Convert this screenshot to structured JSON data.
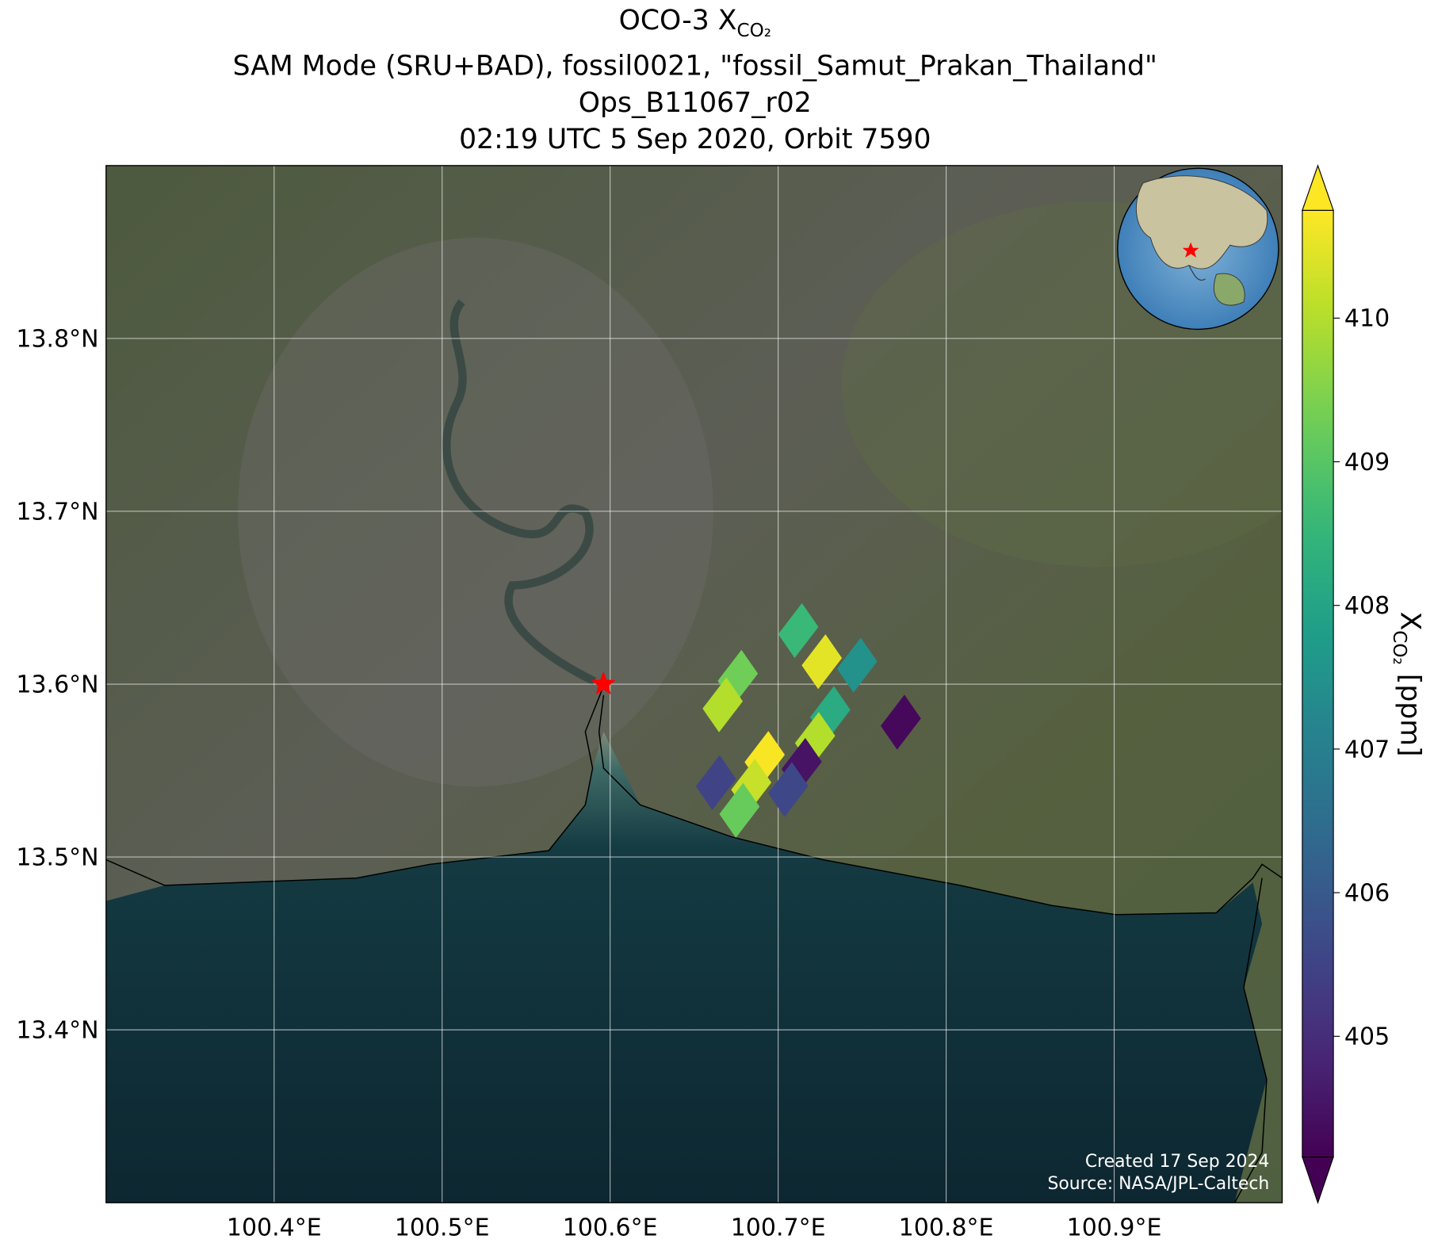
{
  "chart_data": {
    "type": "map-scatter",
    "title": {
      "main": "OCO-3 X",
      "subscript": "CO₂"
    },
    "subtitle_lines": [
      "SAM Mode (SRU+BAD), fossil0021, \"fossil_Samut_Prakan_Thailand\"",
      "Ops_B11067_r02",
      "02:19 UTC 5 Sep 2020, Orbit 7590"
    ],
    "x": [
      100.712,
      100.726,
      100.747,
      100.676,
      100.667,
      100.731,
      100.773,
      100.722,
      100.692,
      100.714,
      100.663,
      100.684,
      100.706,
      100.677
    ],
    "y": [
      13.631,
      13.613,
      13.611,
      13.604,
      13.588,
      13.583,
      13.578,
      13.568,
      13.557,
      13.553,
      13.543,
      13.541,
      13.539,
      13.527
    ],
    "values": [
      408.6,
      410.5,
      407.5,
      409.3,
      410.0,
      408.2,
      404.3,
      410.0,
      410.7,
      404.5,
      405.5,
      410.2,
      405.6,
      409.2
    ],
    "target": {
      "x": 100.596,
      "y": 13.6,
      "color": "#ff0000"
    },
    "xlim": [
      100.3,
      101.0
    ],
    "ylim": [
      13.3,
      13.9
    ],
    "xticks": [
      {
        "value": 100.4,
        "label": "100.4°E"
      },
      {
        "value": 100.5,
        "label": "100.5°E"
      },
      {
        "value": 100.6,
        "label": "100.6°E"
      },
      {
        "value": 100.7,
        "label": "100.7°E"
      },
      {
        "value": 100.8,
        "label": "100.8°E"
      },
      {
        "value": 100.9,
        "label": "100.9°E"
      }
    ],
    "yticks": [
      {
        "value": 13.4,
        "label": "13.4°N"
      },
      {
        "value": 13.5,
        "label": "13.5°N"
      },
      {
        "value": 13.6,
        "label": "13.6°N"
      },
      {
        "value": 13.7,
        "label": "13.7°N"
      },
      {
        "value": 13.8,
        "label": "13.8°N"
      }
    ],
    "grid": true,
    "colormap": "viridis",
    "clim": [
      404.16,
      410.75
    ],
    "cticks": [
      405,
      406,
      407,
      408,
      409,
      410
    ],
    "colorbar_label": {
      "main": "X",
      "subscript": "CO₂",
      "suffix": " [ppm]"
    },
    "annotations": [
      "Created 17 Sep 2024",
      "Source: NASA/JPL-Caltech"
    ]
  }
}
